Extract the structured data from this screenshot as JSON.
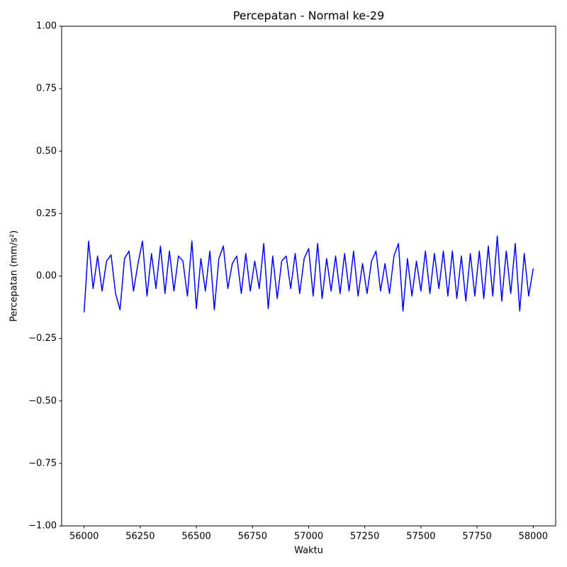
{
  "chart_data": {
    "type": "line",
    "title": "Percepatan - Normal ke-29",
    "x_label": "Waktu",
    "y_label": "Percepatan (mm/s²)",
    "color": "#0000ff",
    "xlim": [
      55900,
      58100
    ],
    "ylim": [
      -1,
      1
    ],
    "xticks": [
      56000,
      56250,
      56500,
      56750,
      57000,
      57250,
      57500,
      57750,
      58000
    ],
    "yticks": [
      {
        "value": -1,
        "label": "−1.00"
      },
      {
        "value": -0.75,
        "label": "−0.75"
      },
      {
        "value": -0.5,
        "label": "−0.50"
      },
      {
        "value": -0.25,
        "label": "−0.25"
      },
      {
        "value": 0,
        "label": "0.00"
      },
      0.25,
      {
        "value": 0.5,
        "label": "0.50"
      },
      0.75,
      {
        "value": 1,
        "label": "1.00"
      }
    ],
    "x": [
      56000,
      56020,
      56040,
      56060,
      56080,
      56100,
      56120,
      56140,
      56160,
      56180,
      56200,
      56220,
      56240,
      56260,
      56280,
      56300,
      56320,
      56340,
      56360,
      56380,
      56400,
      56420,
      56440,
      56460,
      56480,
      56500,
      56520,
      56540,
      56560,
      56580,
      56600,
      56620,
      56640,
      56660,
      56680,
      56700,
      56720,
      56740,
      56760,
      56780,
      56800,
      56820,
      56840,
      56860,
      56880,
      56900,
      56920,
      56940,
      56960,
      56980,
      57000,
      57020,
      57040,
      57060,
      57080,
      57100,
      57120,
      57140,
      57160,
      57180,
      57200,
      57220,
      57240,
      57260,
      57280,
      57300,
      57320,
      57340,
      57360,
      57380,
      57400,
      57420,
      57440,
      57460,
      57480,
      57500,
      57520,
      57540,
      57560,
      57580,
      57600,
      57620,
      57640,
      57660,
      57680,
      57700,
      57720,
      57740,
      57760,
      57780,
      57800,
      57820,
      57840,
      57860,
      57880,
      57900,
      57920,
      57940,
      57960,
      57980,
      58000
    ],
    "values": [
      -0.145,
      0.14,
      -0.05,
      0.08,
      -0.06,
      0.06,
      0.085,
      -0.07,
      -0.135,
      0.07,
      0.1,
      -0.06,
      0.05,
      0.14,
      -0.08,
      0.09,
      -0.05,
      0.12,
      -0.07,
      0.1,
      -0.06,
      0.08,
      0.06,
      -0.08,
      0.14,
      -0.13,
      0.07,
      -0.06,
      0.1,
      -0.135,
      0.07,
      0.12,
      -0.05,
      0.05,
      0.08,
      -0.07,
      0.09,
      -0.06,
      0.06,
      -0.05,
      0.13,
      -0.13,
      0.08,
      -0.09,
      0.06,
      0.08,
      -0.05,
      0.09,
      -0.07,
      0.07,
      0.11,
      -0.08,
      0.13,
      -0.09,
      0.07,
      -0.06,
      0.08,
      -0.07,
      0.09,
      -0.06,
      0.1,
      -0.08,
      0.05,
      -0.07,
      0.06,
      0.1,
      -0.06,
      0.05,
      -0.07,
      0.08,
      0.13,
      -0.14,
      0.07,
      -0.08,
      0.06,
      -0.06,
      0.1,
      -0.07,
      0.09,
      -0.05,
      0.1,
      -0.08,
      0.1,
      -0.09,
      0.08,
      -0.1,
      0.09,
      -0.08,
      0.1,
      -0.09,
      0.12,
      -0.08,
      0.16,
      -0.1,
      0.1,
      -0.07,
      0.13,
      -0.14,
      0.09,
      -0.08,
      0.03
    ]
  }
}
